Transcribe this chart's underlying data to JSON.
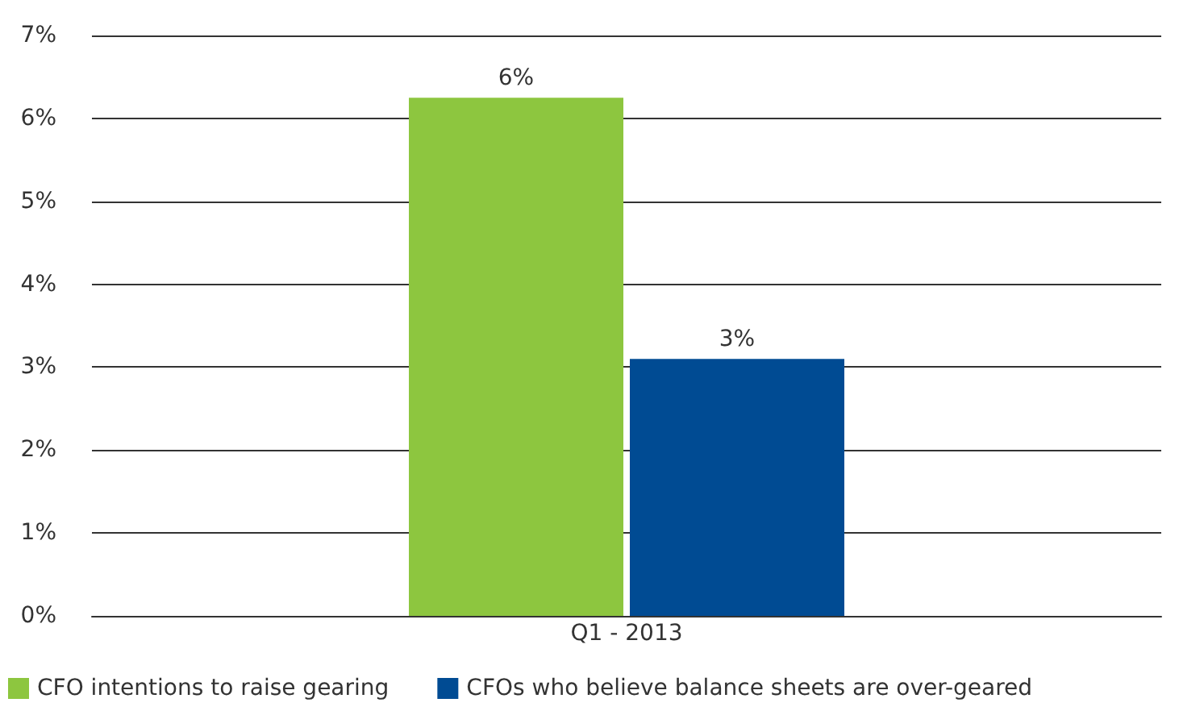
{
  "chart_data": {
    "type": "bar",
    "categories": [
      "Q1 - 2013"
    ],
    "series": [
      {
        "name": "CFO intentions to raise gearing",
        "color": "#8dc63f",
        "values": [
          6.25
        ],
        "value_labels": [
          "6%"
        ]
      },
      {
        "name": "CFOs who believe balance sheets are over-geared",
        "color": "#004b93",
        "values": [
          3.1
        ],
        "value_labels": [
          "3%"
        ]
      }
    ],
    "ylim": [
      0,
      7
    ],
    "yticks": [
      {
        "value": 0,
        "label": "0%"
      },
      {
        "value": 1,
        "label": "1%"
      },
      {
        "value": 2,
        "label": "2%"
      },
      {
        "value": 3,
        "label": "3%"
      },
      {
        "value": 4,
        "label": "4%"
      },
      {
        "value": 5,
        "label": "5%"
      },
      {
        "value": 6,
        "label": "6%"
      },
      {
        "value": 7,
        "label": "7%"
      }
    ],
    "grid": "y",
    "legend": "bottom left"
  }
}
